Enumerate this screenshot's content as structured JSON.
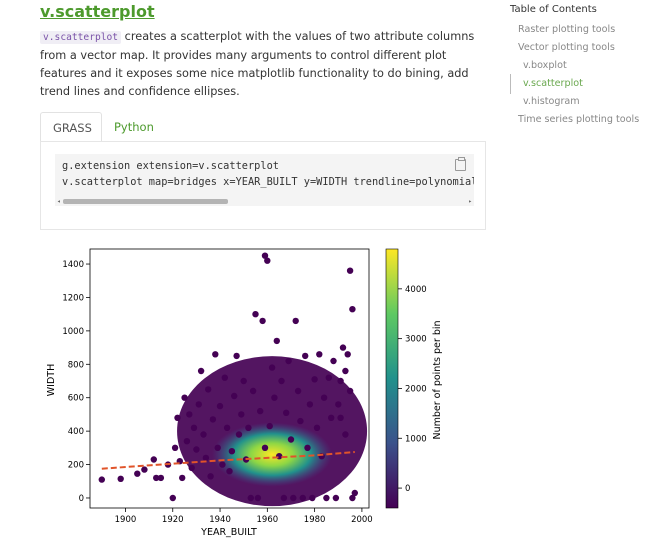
{
  "heading": "v.scatterplot",
  "intro": {
    "code": "v.scatterplot",
    "text": " creates a scatterplot with the values of two attribute columns from a vector map. It provides many arguments to control different plot features and it exposes some nice matplotlib functionality to do bining, add trend lines and confidence ellipses."
  },
  "tabs": [
    {
      "label": "GRASS",
      "active": true
    },
    {
      "label": "Python",
      "active": false
    }
  ],
  "code_block": {
    "lines": [
      "g.extension extension=v.scatterplot",
      "v.scatterplot map=bridges x=YEAR_BUILT y=WIDTH trendline=polynomial"
    ]
  },
  "toc": {
    "title": "Table of Contents",
    "items": [
      {
        "label": "Raster plotting tools",
        "level": 1,
        "active": false
      },
      {
        "label": "Vector plotting tools",
        "level": 1,
        "active": false
      },
      {
        "label": "v.boxplot",
        "level": 2,
        "active": false
      },
      {
        "label": "v.scatterplot",
        "level": 2,
        "active": true
      },
      {
        "label": "v.histogram",
        "level": 2,
        "active": false
      },
      {
        "label": "Time series plotting tools",
        "level": 1,
        "active": false
      }
    ]
  },
  "colors": {
    "accent": "#4d9a2d",
    "trendline": "#e0542a",
    "point_low": "#440154",
    "point_high": "#fde725"
  },
  "chart_data": {
    "type": "scatter",
    "xlabel": "YEAR_BUILT",
    "ylabel": "WIDTH",
    "xlim": [
      1885,
      2003
    ],
    "ylim": [
      -60,
      1490
    ],
    "xticks": [
      1900,
      1920,
      1940,
      1960,
      1980,
      2000
    ],
    "yticks": [
      0,
      200,
      400,
      600,
      800,
      1000,
      1200,
      1400
    ],
    "colorbar": {
      "label": "Number of points per bin",
      "range": [
        -400,
        4800
      ],
      "ticks": [
        0,
        1000,
        2000,
        3000,
        4000
      ]
    },
    "trendline": {
      "style": "dashed",
      "points": [
        [
          1890,
          175
        ],
        [
          1920,
          205
        ],
        [
          1940,
          225
        ],
        [
          1960,
          240
        ],
        [
          1980,
          255
        ],
        [
          1997,
          275
        ]
      ]
    },
    "points": [
      [
        1890,
        110
      ],
      [
        1898,
        115
      ],
      [
        1905,
        145
      ],
      [
        1908,
        170
      ],
      [
        1912,
        230
      ],
      [
        1913,
        120
      ],
      [
        1915,
        120
      ],
      [
        1918,
        200
      ],
      [
        1920,
        0
      ],
      [
        1921,
        300
      ],
      [
        1922,
        480
      ],
      [
        1923,
        220
      ],
      [
        1924,
        120
      ],
      [
        1925,
        600
      ],
      [
        1926,
        340
      ],
      [
        1927,
        500
      ],
      [
        1928,
        180
      ],
      [
        1929,
        420
      ],
      [
        1930,
        290
      ],
      [
        1931,
        560
      ],
      [
        1932,
        760
      ],
      [
        1933,
        380
      ],
      [
        1934,
        240
      ],
      [
        1935,
        650
      ],
      [
        1936,
        130
      ],
      [
        1937,
        470
      ],
      [
        1938,
        860
      ],
      [
        1939,
        300
      ],
      [
        1940,
        550
      ],
      [
        1941,
        200
      ],
      [
        1942,
        720
      ],
      [
        1943,
        420
      ],
      [
        1944,
        160
      ],
      [
        1945,
        280
      ],
      [
        1946,
        610
      ],
      [
        1947,
        850
      ],
      [
        1948,
        380
      ],
      [
        1949,
        500
      ],
      [
        1950,
        700
      ],
      [
        1951,
        230
      ],
      [
        1952,
        420
      ],
      [
        1953,
        0
      ],
      [
        1954,
        640
      ],
      [
        1955,
        1100
      ],
      [
        1956,
        0
      ],
      [
        1957,
        520
      ],
      [
        1958,
        1060
      ],
      [
        1959,
        300
      ],
      [
        1959,
        1450
      ],
      [
        1960,
        1420
      ],
      [
        1961,
        430
      ],
      [
        1962,
        780
      ],
      [
        1963,
        600
      ],
      [
        1964,
        940
      ],
      [
        1965,
        250
      ],
      [
        1966,
        700
      ],
      [
        1967,
        0
      ],
      [
        1968,
        510
      ],
      [
        1969,
        820
      ],
      [
        1970,
        350
      ],
      [
        1971,
        0
      ],
      [
        1972,
        1060
      ],
      [
        1973,
        640
      ],
      [
        1974,
        460
      ],
      [
        1975,
        0
      ],
      [
        1976,
        850
      ],
      [
        1977,
        300
      ],
      [
        1978,
        560
      ],
      [
        1979,
        0
      ],
      [
        1980,
        710
      ],
      [
        1981,
        420
      ],
      [
        1982,
        860
      ],
      [
        1983,
        250
      ],
      [
        1984,
        600
      ],
      [
        1985,
        0
      ],
      [
        1986,
        720
      ],
      [
        1987,
        480
      ],
      [
        1988,
        820
      ],
      [
        1989,
        0
      ],
      [
        1990,
        560
      ],
      [
        1991,
        700
      ],
      [
        1992,
        900
      ],
      [
        1993,
        380
      ],
      [
        1994,
        860
      ],
      [
        1995,
        1360
      ],
      [
        1996,
        1130
      ],
      [
        1996,
        0
      ],
      [
        1997,
        30
      ],
      [
        1995,
        640
      ],
      [
        1993,
        760
      ],
      [
        1991,
        480
      ]
    ]
  }
}
